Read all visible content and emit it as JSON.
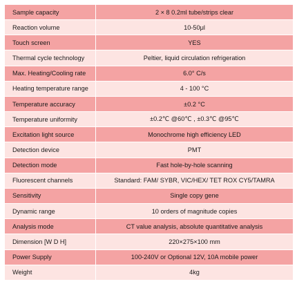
{
  "specs": [
    {
      "label": "Sample capacity",
      "value": "2 × 8 0.2ml tube/strips clear"
    },
    {
      "label": "Reaction volume",
      "value": "10-50μl"
    },
    {
      "label": "Touch screen",
      "value": "YES"
    },
    {
      "label": "Thermal cycle technology",
      "value": "Peltier, liquid circulation refrigeration"
    },
    {
      "label": "Max. Heating/Cooling rate",
      "value": "6.0° C/s"
    },
    {
      "label": "Heating temperature range",
      "value": "4  - 100 °C"
    },
    {
      "label": "Temperature accuracy",
      "value": "±0.2 °C"
    },
    {
      "label": "Temperature uniformity",
      "value": "±0.2℃ @60℃ , ±0.3℃ @95℃"
    },
    {
      "label": "Excitation light source",
      "value": "Monochrome high efficiency LED"
    },
    {
      "label": "Detection device",
      "value": "PMT"
    },
    {
      "label": "Detection mode",
      "value": "Fast hole-by-hole scanning"
    },
    {
      "label": "Fluorescent channels",
      "value": "Standard: FAM/ SYBR, VIC/HEX/ TET  ROX CY5/TAMRA"
    },
    {
      "label": "Sensitivity",
      "value": "Single copy gene"
    },
    {
      "label": "Dynamic range",
      "value": "10 orders of magnitude copies"
    },
    {
      "label": "Analysis mode",
      "value": "CT value analysis, absolute quantitative analysis"
    },
    {
      "label": "Dimension [W    D    H]",
      "value": "220×275×100 mm"
    },
    {
      "label": "Power Supply",
      "value": "100-240V or Optional 12V, 10A mobile power"
    },
    {
      "label": "Weight",
      "value": "4kg"
    }
  ],
  "colors": {
    "row_dark": "#f4a3a3",
    "row_light": "#fde4e2"
  }
}
